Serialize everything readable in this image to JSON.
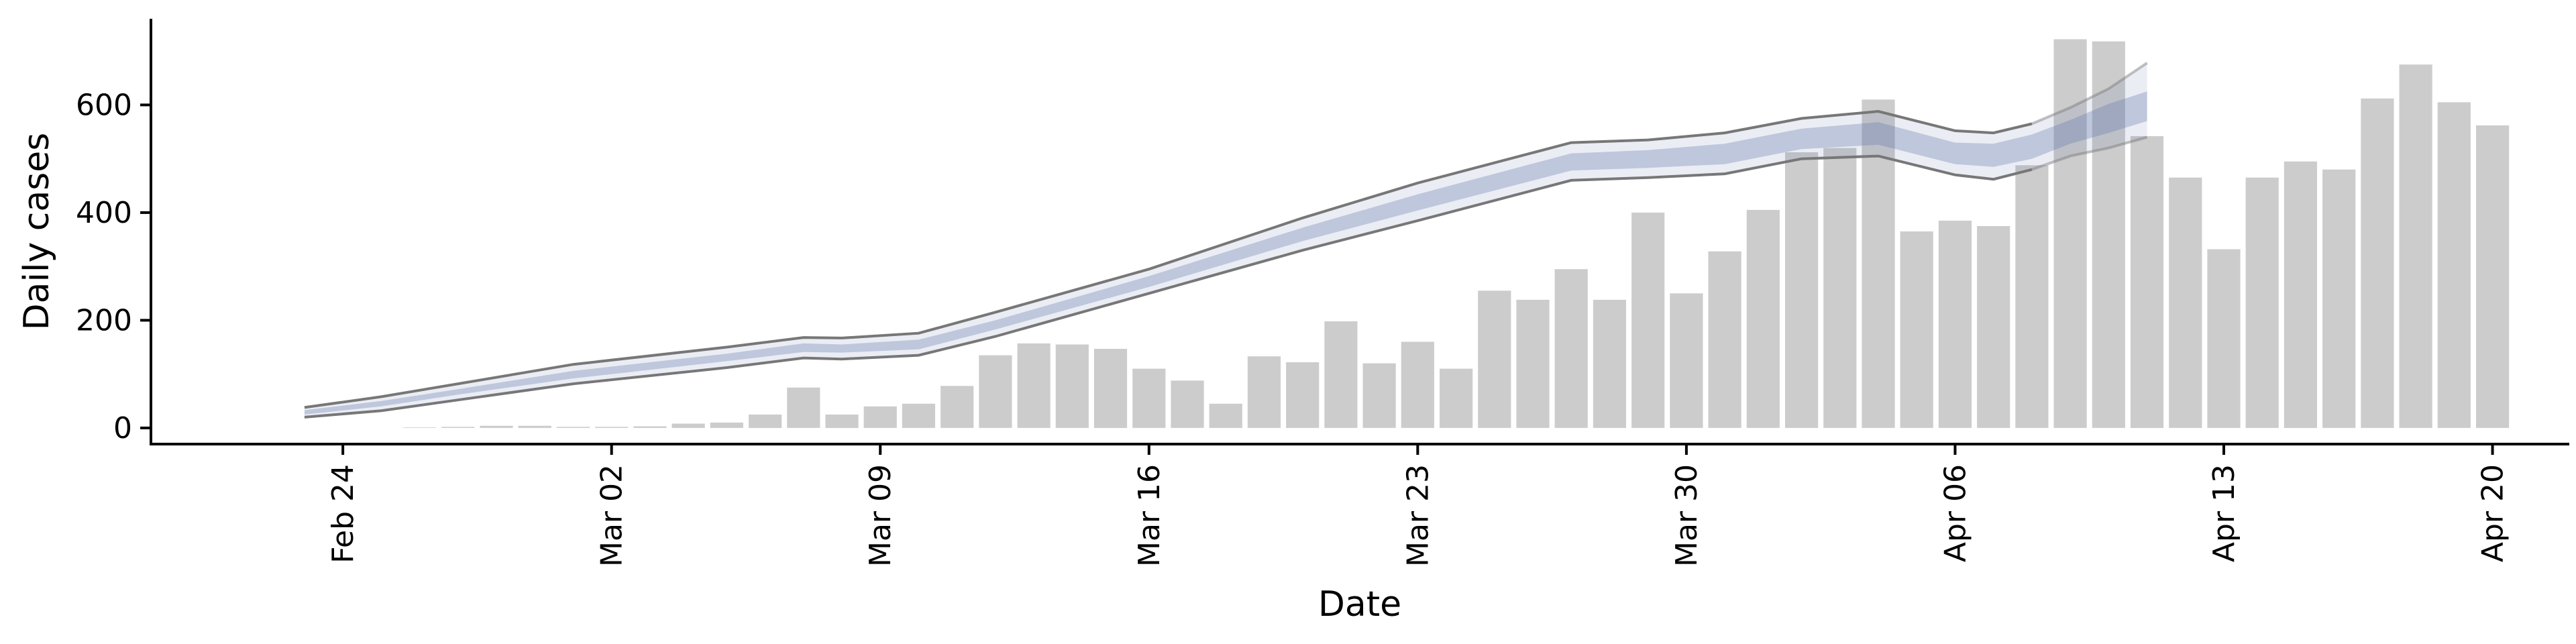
{
  "chart_data": {
    "type": "bar",
    "xlabel": "Date",
    "ylabel": "Daily cases",
    "ylim": [
      -30,
      760
    ],
    "y_ticks": [
      0,
      200,
      400,
      600
    ],
    "x_ticks": [
      {
        "date": "2020-02-24",
        "label": "Feb 24"
      },
      {
        "date": "2020-03-02",
        "label": "Mar 02"
      },
      {
        "date": "2020-03-09",
        "label": "Mar 09"
      },
      {
        "date": "2020-03-16",
        "label": "Mar 16"
      },
      {
        "date": "2020-03-23",
        "label": "Mar 23"
      },
      {
        "date": "2020-03-30",
        "label": "Mar 30"
      },
      {
        "date": "2020-04-06",
        "label": "Apr 06"
      },
      {
        "date": "2020-04-13",
        "label": "Apr 13"
      },
      {
        "date": "2020-04-20",
        "label": "Apr 20"
      }
    ],
    "xlim": [
      "2020-02-19",
      "2020-04-22"
    ],
    "grid": false,
    "series": [
      {
        "kind": "bar",
        "color": "#cccccc",
        "points": [
          {
            "x": "2020-02-26",
            "y": 1
          },
          {
            "x": "2020-02-27",
            "y": 2
          },
          {
            "x": "2020-02-28",
            "y": 4
          },
          {
            "x": "2020-02-29",
            "y": 4
          },
          {
            "x": "2020-03-01",
            "y": 2
          },
          {
            "x": "2020-03-02",
            "y": 2
          },
          {
            "x": "2020-03-03",
            "y": 3
          },
          {
            "x": "2020-03-04",
            "y": 8
          },
          {
            "x": "2020-03-05",
            "y": 10
          },
          {
            "x": "2020-03-06",
            "y": 25
          },
          {
            "x": "2020-03-07",
            "y": 75
          },
          {
            "x": "2020-03-08",
            "y": 25
          },
          {
            "x": "2020-03-09",
            "y": 40
          },
          {
            "x": "2020-03-10",
            "y": 45
          },
          {
            "x": "2020-03-11",
            "y": 78
          },
          {
            "x": "2020-03-12",
            "y": 135
          },
          {
            "x": "2020-03-13",
            "y": 157
          },
          {
            "x": "2020-03-14",
            "y": 155
          },
          {
            "x": "2020-03-15",
            "y": 147
          },
          {
            "x": "2020-03-16",
            "y": 110
          },
          {
            "x": "2020-03-17",
            "y": 88
          },
          {
            "x": "2020-03-18",
            "y": 45
          },
          {
            "x": "2020-03-19",
            "y": 133
          },
          {
            "x": "2020-03-20",
            "y": 122
          },
          {
            "x": "2020-03-21",
            "y": 198
          },
          {
            "x": "2020-03-22",
            "y": 120
          },
          {
            "x": "2020-03-23",
            "y": 160
          },
          {
            "x": "2020-03-24",
            "y": 110
          },
          {
            "x": "2020-03-25",
            "y": 255
          },
          {
            "x": "2020-03-26",
            "y": 238
          },
          {
            "x": "2020-03-27",
            "y": 295
          },
          {
            "x": "2020-03-28",
            "y": 238
          },
          {
            "x": "2020-03-29",
            "y": 400
          },
          {
            "x": "2020-03-30",
            "y": 250
          },
          {
            "x": "2020-03-31",
            "y": 328
          },
          {
            "x": "2020-04-01",
            "y": 405
          },
          {
            "x": "2020-04-02",
            "y": 512
          },
          {
            "x": "2020-04-03",
            "y": 520
          },
          {
            "x": "2020-04-04",
            "y": 610
          },
          {
            "x": "2020-04-05",
            "y": 365
          },
          {
            "x": "2020-04-06",
            "y": 385
          },
          {
            "x": "2020-04-07",
            "y": 375
          },
          {
            "x": "2020-04-08",
            "y": 488
          },
          {
            "x": "2020-04-09",
            "y": 722
          },
          {
            "x": "2020-04-10",
            "y": 718
          },
          {
            "x": "2020-04-11",
            "y": 542
          },
          {
            "x": "2020-04-12",
            "y": 465
          },
          {
            "x": "2020-04-13",
            "y": 332
          },
          {
            "x": "2020-04-14",
            "y": 465
          },
          {
            "x": "2020-04-15",
            "y": 495
          },
          {
            "x": "2020-04-16",
            "y": 480
          },
          {
            "x": "2020-04-17",
            "y": 612
          },
          {
            "x": "2020-04-18",
            "y": 675
          },
          {
            "x": "2020-04-19",
            "y": 605
          },
          {
            "x": "2020-04-20",
            "y": 562
          }
        ]
      },
      {
        "kind": "band",
        "color": "#5a6fa8",
        "points": [
          {
            "x": "2020-02-23",
            "lower": 20,
            "upper": 38,
            "inner_lower": 25,
            "inner_upper": 33
          },
          {
            "x": "2020-02-25",
            "lower": 32,
            "upper": 58,
            "inner_lower": 40,
            "inner_upper": 50
          },
          {
            "x": "2020-02-27",
            "lower": 52,
            "upper": 82,
            "inner_lower": 62,
            "inner_upper": 72
          },
          {
            "x": "2020-03-01",
            "lower": 82,
            "upper": 118,
            "inner_lower": 92,
            "inner_upper": 106
          },
          {
            "x": "2020-03-05",
            "lower": 112,
            "upper": 150,
            "inner_lower": 124,
            "inner_upper": 138
          },
          {
            "x": "2020-03-07",
            "lower": 130,
            "upper": 168,
            "inner_lower": 141,
            "inner_upper": 157
          },
          {
            "x": "2020-03-08",
            "lower": 128,
            "upper": 167,
            "inner_lower": 140,
            "inner_upper": 155
          },
          {
            "x": "2020-03-10",
            "lower": 135,
            "upper": 176,
            "inner_lower": 146,
            "inner_upper": 164
          },
          {
            "x": "2020-03-12",
            "lower": 170,
            "upper": 215,
            "inner_lower": 183,
            "inner_upper": 200
          },
          {
            "x": "2020-03-16",
            "lower": 250,
            "upper": 295,
            "inner_lower": 262,
            "inner_upper": 282
          },
          {
            "x": "2020-03-20",
            "lower": 330,
            "upper": 390,
            "inner_lower": 347,
            "inner_upper": 372
          },
          {
            "x": "2020-03-23",
            "lower": 385,
            "upper": 455,
            "inner_lower": 404,
            "inner_upper": 434
          },
          {
            "x": "2020-03-27",
            "lower": 460,
            "upper": 530,
            "inner_lower": 478,
            "inner_upper": 510
          },
          {
            "x": "2020-03-29",
            "lower": 465,
            "upper": 535,
            "inner_lower": 483,
            "inner_upper": 516
          },
          {
            "x": "2020-03-31",
            "lower": 472,
            "upper": 548,
            "inner_lower": 490,
            "inner_upper": 528
          },
          {
            "x": "2020-04-02",
            "lower": 500,
            "upper": 575,
            "inner_lower": 518,
            "inner_upper": 556
          },
          {
            "x": "2020-04-04",
            "lower": 505,
            "upper": 588,
            "inner_lower": 526,
            "inner_upper": 568
          },
          {
            "x": "2020-04-06",
            "lower": 470,
            "upper": 552,
            "inner_lower": 490,
            "inner_upper": 530
          },
          {
            "x": "2020-04-07",
            "lower": 462,
            "upper": 548,
            "inner_lower": 485,
            "inner_upper": 528
          },
          {
            "x": "2020-04-08",
            "lower": 480,
            "upper": 565,
            "inner_lower": 500,
            "inner_upper": 545
          },
          {
            "x": "2020-04-09",
            "lower": 505,
            "upper": 595,
            "inner_lower": 528,
            "inner_upper": 572
          },
          {
            "x": "2020-04-10",
            "lower": 520,
            "upper": 630,
            "inner_lower": 548,
            "inner_upper": 602
          },
          {
            "x": "2020-04-11",
            "lower": 540,
            "upper": 678,
            "inner_lower": 570,
            "inner_upper": 625
          }
        ]
      }
    ]
  }
}
